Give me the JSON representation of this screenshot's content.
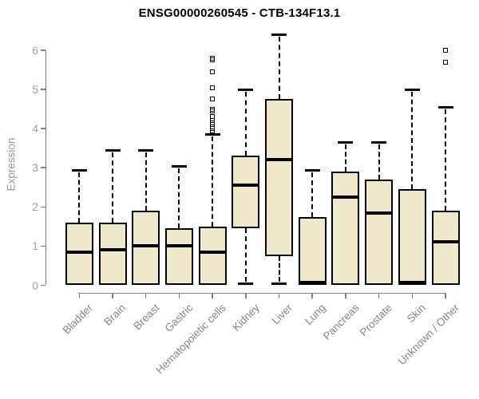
{
  "title": "ENSG00000260545 - CTB-134F13.1",
  "chart_data": {
    "type": "boxplot",
    "title": "ENSG00000260545 - CTB-134F13.1",
    "ylabel": "Expression",
    "xlabel": "",
    "ylim": [
      0,
      6.5
    ],
    "yticks": [
      0,
      1,
      2,
      3,
      4,
      5,
      6
    ],
    "grid": false,
    "legend": "none",
    "categories": [
      "Bladder",
      "Brain",
      "Breast",
      "Gastric",
      "Hematopoietic cells",
      "Kidney",
      "Liver",
      "Lung",
      "Pancreas",
      "Prostate",
      "Skin",
      "Unknown / Other"
    ],
    "series": [
      {
        "name": "Bladder",
        "low": 0,
        "q1": 0,
        "median": 0.85,
        "q3": 1.6,
        "high": 2.95,
        "outliers": []
      },
      {
        "name": "Brain",
        "low": 0,
        "q1": 0,
        "median": 0.9,
        "q3": 1.6,
        "high": 3.45,
        "outliers": []
      },
      {
        "name": "Breast",
        "low": 0,
        "q1": 0,
        "median": 1.0,
        "q3": 1.9,
        "high": 3.45,
        "outliers": []
      },
      {
        "name": "Gastric",
        "low": 0,
        "q1": 0,
        "median": 1.0,
        "q3": 1.45,
        "high": 3.05,
        "outliers": []
      },
      {
        "name": "Hematopoietic cells",
        "low": 0,
        "q1": 0,
        "median": 0.85,
        "q3": 1.5,
        "high": 3.85,
        "outliers": [
          3.9,
          3.95,
          4.0,
          4.05,
          4.1,
          4.15,
          4.2,
          4.3,
          4.45,
          4.5,
          4.75,
          5.05,
          5.45,
          5.75,
          5.8
        ]
      },
      {
        "name": "Kidney",
        "low": 0.05,
        "q1": 1.45,
        "median": 2.55,
        "q3": 3.3,
        "high": 5.0,
        "outliers": []
      },
      {
        "name": "Liver",
        "low": 0.05,
        "q1": 0.75,
        "median": 3.2,
        "q3": 4.75,
        "high": 6.4,
        "outliers": []
      },
      {
        "name": "Lung",
        "low": 0,
        "q1": 0,
        "median": 0.08,
        "q3": 1.75,
        "high": 2.95,
        "outliers": []
      },
      {
        "name": "Pancreas",
        "low": 0,
        "q1": 0,
        "median": 2.25,
        "q3": 2.9,
        "high": 3.65,
        "outliers": []
      },
      {
        "name": "Prostate",
        "low": 0,
        "q1": 0,
        "median": 1.85,
        "q3": 2.7,
        "high": 3.65,
        "outliers": []
      },
      {
        "name": "Skin",
        "low": 0,
        "q1": 0,
        "median": 0.08,
        "q3": 2.45,
        "high": 5.0,
        "outliers": []
      },
      {
        "name": "Unknown / Other",
        "low": 0,
        "q1": 0,
        "median": 1.1,
        "q3": 1.9,
        "high": 4.55,
        "outliers": [
          5.7,
          6.0
        ]
      }
    ],
    "colors": {
      "box_fill": "#EEE8CD",
      "box_border": "#000000",
      "median_line": "#000000",
      "whisker": "#000000",
      "axis": "#808080",
      "y_tick_label": "#9AA1AE",
      "category_label": "#878787",
      "ylabel": "#999999",
      "title": "#000000",
      "background": "#FFFFFF"
    }
  }
}
